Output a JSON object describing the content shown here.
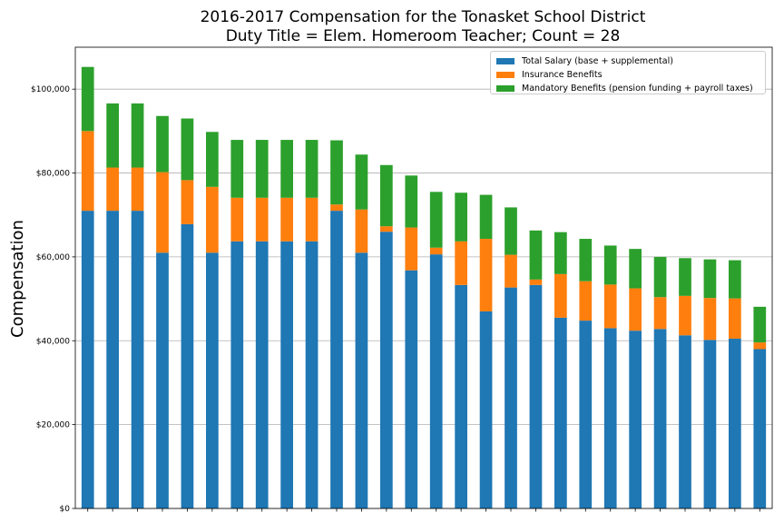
{
  "chart_data": {
    "type": "bar",
    "stacked": true,
    "title_line1": "2016-2017 Compensation for the Tonasket School District",
    "title_line2": "Duty Title = Elem. Homeroom Teacher; Count = 28",
    "xlabel": "",
    "ylabel": "Compensation",
    "ylim": [
      0,
      110000
    ],
    "yticks": [
      0,
      20000,
      40000,
      60000,
      80000,
      100000
    ],
    "ytick_labels": [
      "$0",
      "$20,000",
      "$40,000",
      "$60,000",
      "$80,000",
      "$100,000"
    ],
    "grid": "horizontal",
    "legend_position": "top-right",
    "series": [
      {
        "name": "Total Salary (base + supplemental)",
        "color": "#1f77b4",
        "values": [
          71000,
          71000,
          71000,
          61000,
          67800,
          61000,
          63700,
          63700,
          63700,
          63700,
          71000,
          61000,
          66000,
          56800,
          60600,
          53300,
          47000,
          52700,
          53300,
          45500,
          44800,
          43000,
          42400,
          42800,
          41300,
          40200,
          40500,
          38000
        ]
      },
      {
        "name": "Insurance Benefits",
        "color": "#ff7f0e",
        "values": [
          19000,
          10300,
          10300,
          19200,
          10500,
          15700,
          10400,
          10400,
          10400,
          10400,
          1500,
          10300,
          1300,
          10200,
          1600,
          10400,
          17300,
          7800,
          1300,
          10400,
          9400,
          10400,
          10100,
          7600,
          9400,
          10000,
          9600,
          1600
        ]
      },
      {
        "name": "Mandatory Benefits (pension funding + payroll taxes)",
        "color": "#2ca02c",
        "values": [
          15300,
          15300,
          15300,
          13400,
          14700,
          13100,
          13800,
          13800,
          13800,
          13800,
          15300,
          13100,
          14600,
          12400,
          13300,
          11600,
          10500,
          11300,
          11700,
          10000,
          10100,
          9300,
          9400,
          9600,
          9000,
          9200,
          9100,
          8500
        ]
      }
    ]
  }
}
